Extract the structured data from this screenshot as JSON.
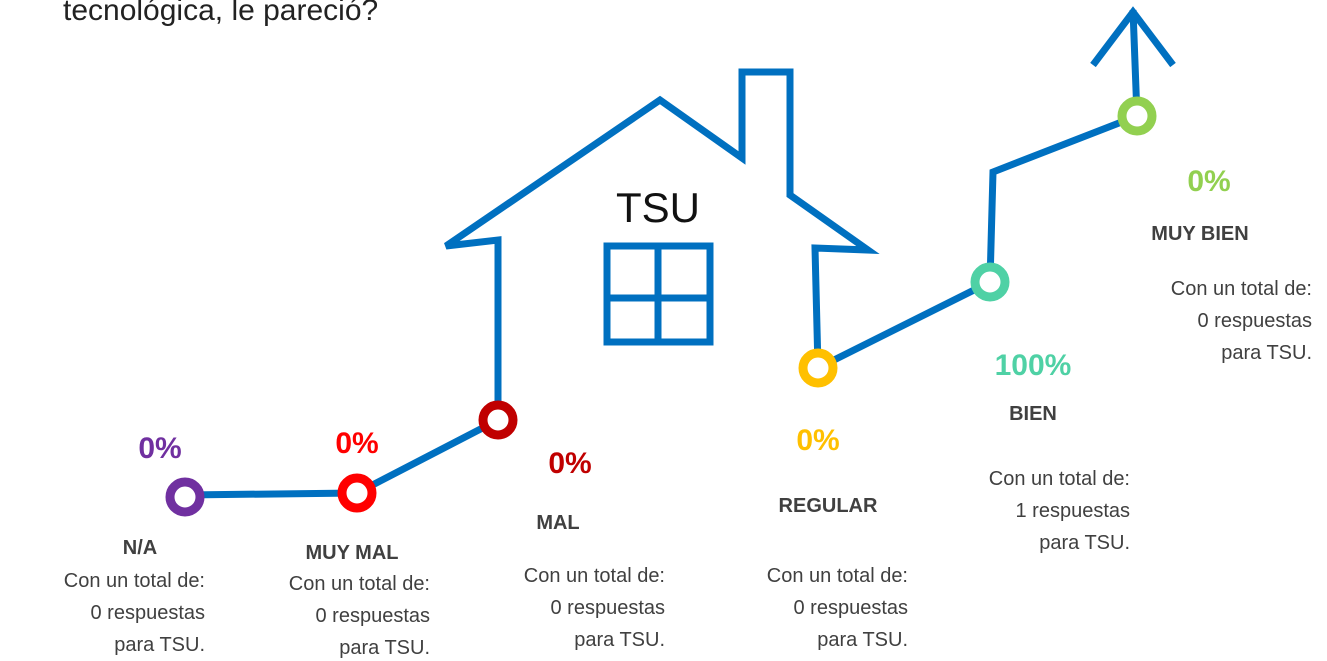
{
  "title": "tecnológica, le pareció?",
  "house_label": "TSU",
  "items": [
    {
      "percent": "0%",
      "label": "N/A",
      "color": "#7030a0",
      "lines": [
        "Con un total de:",
        "0 respuestas",
        "para TSU."
      ]
    },
    {
      "percent": "0%",
      "label": "MUY MAL",
      "color": "#ff0000",
      "lines": [
        "Con un total de:",
        "0 respuestas",
        "para TSU."
      ]
    },
    {
      "percent": "0%",
      "label": "MAL",
      "color": "#c00000",
      "lines": [
        "Con un total de:",
        "0 respuestas",
        "para TSU."
      ]
    },
    {
      "percent": "0%",
      "label": "REGULAR",
      "color": "#ffc000",
      "lines": [
        "Con un total de:",
        "0 respuestas",
        "para TSU."
      ]
    },
    {
      "percent": "100%",
      "label": "BIEN",
      "color": "#4fd1a5",
      "lines": [
        "Con un total de:",
        "1 respuestas",
        "para TSU."
      ]
    },
    {
      "percent": "0%",
      "label": "MUY BIEN",
      "color": "#92d050",
      "lines": [
        "Con un total de:",
        "0 respuestas",
        "para TSU."
      ]
    }
  ]
}
